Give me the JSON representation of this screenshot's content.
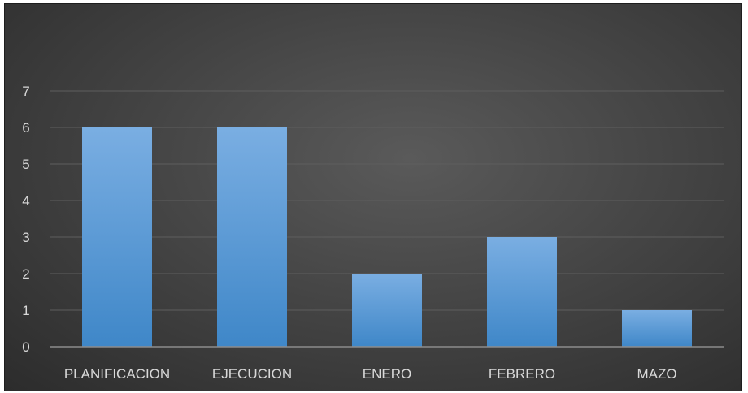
{
  "chart_data": {
    "type": "bar",
    "title": "",
    "xlabel": "",
    "ylabel": "",
    "categories": [
      "PLANIFICACION",
      "EJECUCION",
      "ENERO",
      "FEBRERO",
      "MAZO"
    ],
    "values": [
      6,
      6,
      2,
      3,
      1
    ],
    "ylim": [
      0,
      7
    ],
    "yticks": [
      "0",
      "1",
      "2",
      "3",
      "4",
      "5",
      "6",
      "7"
    ],
    "grid": true,
    "legend": "none",
    "colors": {
      "bar_top": "#7aaee2",
      "bar_bottom": "#3f87c8",
      "background": "#404040",
      "gridline": "#5e5e5e",
      "axis_line": "#8c8c8c",
      "text": "#d9d9d9"
    }
  }
}
